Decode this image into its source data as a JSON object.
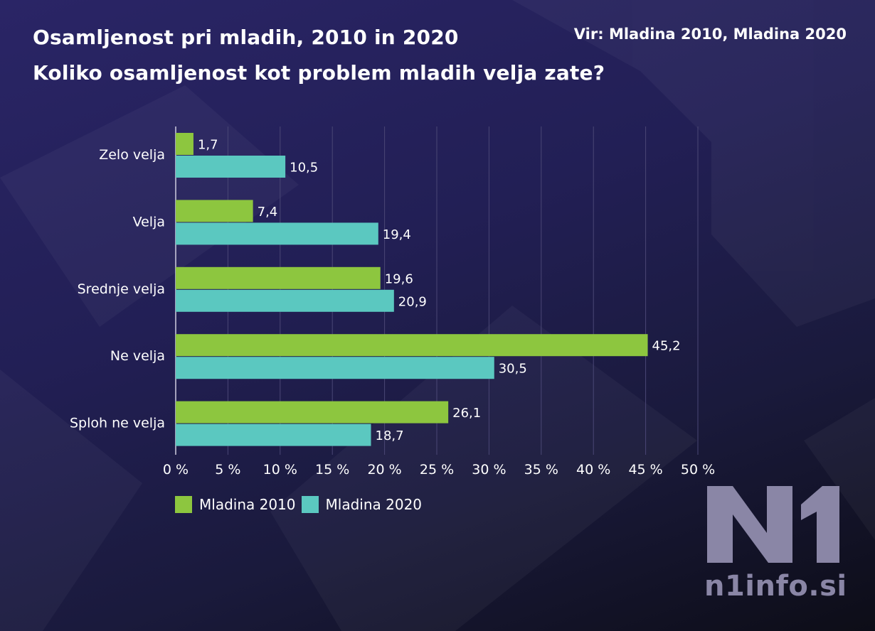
{
  "header": {
    "title_line1": "Osamljenost pri mladih, 2010 in 2020",
    "title_line2": "Koliko osamljenost kot problem mladih velja zate?",
    "source": "Vir: Mladina 2010, Mladina 2020"
  },
  "colors": {
    "series_2010": "#8dc63f",
    "series_2020": "#5bc8c0",
    "grid": "#4a4775",
    "logo": "#8a86a6"
  },
  "chart_data": {
    "type": "bar",
    "orientation": "horizontal",
    "categories": [
      "Zelo velja",
      "Velja",
      "Srednje velja",
      "Ne velja",
      "Sploh ne velja"
    ],
    "series": [
      {
        "name": "Mladina 2010",
        "values": [
          1.7,
          7.4,
          19.6,
          45.2,
          26.1
        ],
        "labels": [
          "1,7",
          "7,4",
          "19,6",
          "45,2",
          "26,1"
        ]
      },
      {
        "name": "Mladina 2020",
        "values": [
          10.5,
          19.4,
          20.9,
          30.5,
          18.7
        ],
        "labels": [
          "10,5",
          "19,4",
          "20,9",
          "30,5",
          "18,7"
        ]
      }
    ],
    "xlim": [
      0,
      50
    ],
    "ticks": [
      0,
      5,
      10,
      15,
      20,
      25,
      30,
      35,
      40,
      45,
      50
    ],
    "tick_labels": [
      "0 %",
      "5 %",
      "10 %",
      "15 %",
      "20 %",
      "25 %",
      "30 %",
      "35 %",
      "40 %",
      "45 %",
      "50 %"
    ],
    "grid": true,
    "legend": "bottom-left"
  },
  "logo": {
    "mark": "N1",
    "text": "n1info.si"
  }
}
